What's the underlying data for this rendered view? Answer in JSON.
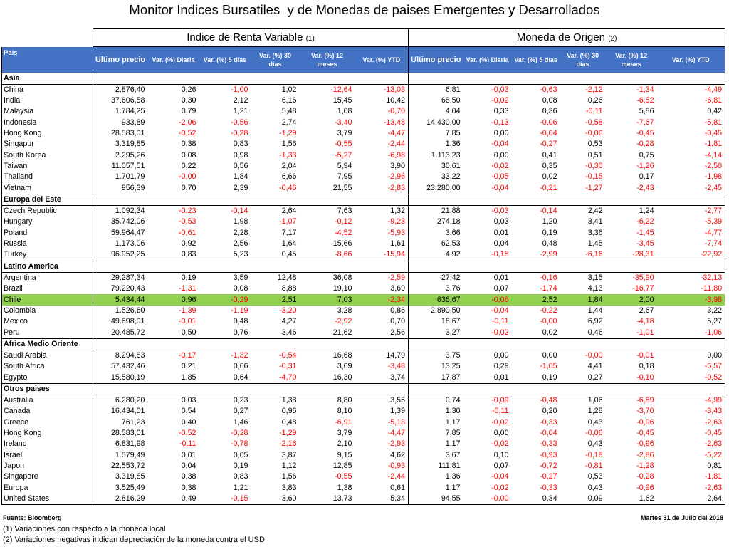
{
  "title": "Monitor Indices Bursatiles  y de Monedas de paises Emergentes y Desarrollados",
  "groups": {
    "equity": "Indice de Renta Variable",
    "equity_note": "(1)",
    "currency": "Moneda de Origen",
    "currency_note": "(2)"
  },
  "columns": [
    "Pais",
    "Ultimo precio",
    "Var. (%) Diaria",
    "Var. (%) 5 días",
    "Var. (%) 30 días",
    "Var. (%) 12 meses",
    "Var. (%) YTD",
    "Ultimo precio",
    "Var. (%) Diaria",
    "Var. (%) 5 días",
    "Var. (%) 30 días",
    "Var. (%) 12 meses",
    "Var. (%) YTD"
  ],
  "sections": [
    {
      "name": "Asia",
      "rows": [
        {
          "pais": "China",
          "v": [
            "2.876,40",
            "0,26",
            "-1,00",
            "1,02",
            "-12,64",
            "-13,03",
            "6,81",
            "-0,03",
            "-0,63",
            "-2,12",
            "-1,34",
            "-4,49"
          ]
        },
        {
          "pais": "India",
          "v": [
            "37.606,58",
            "0,30",
            "2,12",
            "6,16",
            "15,45",
            "10,42",
            "68,50",
            "-0,02",
            "0,08",
            "0,26",
            "-6,52",
            "-6,81"
          ]
        },
        {
          "pais": "Malaysia",
          "v": [
            "1.784,25",
            "0,79",
            "1,21",
            "5,48",
            "1,08",
            "-0,70",
            "4,04",
            "0,33",
            "0,36",
            "-0,11",
            "5,86",
            "0,42"
          ]
        },
        {
          "pais": "Indonesia",
          "v": [
            "933,89",
            "-2,06",
            "-0,56",
            "2,74",
            "-3,40",
            "-13,48",
            "14.430,00",
            "-0,13",
            "-0,06",
            "-0,58",
            "-7,67",
            "-5,81"
          ]
        },
        {
          "pais": "Hong Kong",
          "v": [
            "28.583,01",
            "-0,52",
            "-0,28",
            "-1,29",
            "3,79",
            "-4,47",
            "7,85",
            "0,00",
            "-0,04",
            "-0,06",
            "-0,45",
            "-0,45"
          ]
        },
        {
          "pais": "Singapur",
          "v": [
            "3.319,85",
            "0,38",
            "0,83",
            "1,56",
            "-0,55",
            "-2,44",
            "1,36",
            "-0,04",
            "-0,27",
            "0,53",
            "-0,28",
            "-1,81"
          ]
        },
        {
          "pais": "South Korea",
          "v": [
            "2.295,26",
            "0,08",
            "0,98",
            "-1,33",
            "-5,27",
            "-6,98",
            "1.113,23",
            "0,00",
            "0,41",
            "0,51",
            "0,75",
            "-4,14"
          ]
        },
        {
          "pais": "Taiwan",
          "v": [
            "11.057,51",
            "0,22",
            "0,56",
            "2,04",
            "5,94",
            "3,90",
            "30,61",
            "-0,02",
            "0,35",
            "-0,30",
            "-1,26",
            "-2,50"
          ]
        },
        {
          "pais": "Thailand",
          "v": [
            "1.701,79",
            "-0,00",
            "1,84",
            "6,66",
            "7,95",
            "-2,96",
            "33,22",
            "-0,05",
            "0,02",
            "-0,15",
            "0,17",
            "-1,98"
          ]
        },
        {
          "pais": "Vietnam",
          "v": [
            "956,39",
            "0,70",
            "2,39",
            "-0,46",
            "21,55",
            "-2,83",
            "23.280,00",
            "-0,04",
            "-0,21",
            "-1,27",
            "-2,43",
            "-2,45"
          ]
        }
      ]
    },
    {
      "name": "Europa del Este",
      "rows": [
        {
          "pais": "Czech Republic",
          "v": [
            "1.092,34",
            "-0,23",
            "-0,14",
            "2,64",
            "7,63",
            "1,32",
            "21,88",
            "-0,03",
            "-0,14",
            "2,42",
            "1,24",
            "-2,77"
          ]
        },
        {
          "pais": "Hungary",
          "v": [
            "35.742,06",
            "-0,53",
            "1,98",
            "-1,07",
            "-0,12",
            "-9,23",
            "274,18",
            "0,03",
            "1,20",
            "3,41",
            "-6,22",
            "-5,39"
          ]
        },
        {
          "pais": "Poland",
          "v": [
            "59.964,47",
            "-0,61",
            "2,28",
            "7,17",
            "-4,52",
            "-5,93",
            "3,66",
            "0,01",
            "0,19",
            "3,36",
            "-1,45",
            "-4,77"
          ]
        },
        {
          "pais": "Russia",
          "v": [
            "1.173,06",
            "0,92",
            "2,56",
            "1,64",
            "15,66",
            "1,61",
            "62,53",
            "0,04",
            "0,48",
            "1,45",
            "-3,45",
            "-7,74"
          ]
        },
        {
          "pais": "Turkey",
          "v": [
            "96.952,25",
            "0,83",
            "5,23",
            "0,45",
            "-8,66",
            "-15,94",
            "4,92",
            "-0,15",
            "-2,99",
            "-6,16",
            "-28,31",
            "-22,92"
          ]
        }
      ]
    },
    {
      "name": "Latino America",
      "rows": [
        {
          "pais": "Argentina",
          "v": [
            "29.287,34",
            "0,19",
            "3,59",
            "12,48",
            "36,08",
            "-2,59",
            "27,42",
            "0,01",
            "-0,16",
            "3,15",
            "-35,90",
            "-32,13"
          ]
        },
        {
          "pais": "Brazil",
          "v": [
            "79.220,43",
            "-1,31",
            "0,08",
            "8,88",
            "19,10",
            "3,69",
            "3,76",
            "0,07",
            "-1,74",
            "4,13",
            "-16,77",
            "-11,80"
          ]
        },
        {
          "pais": "Chile",
          "highlight": true,
          "v": [
            "5.434,44",
            "0,96",
            "-0,29",
            "2,51",
            "7,03",
            "-2,34",
            "636,67",
            "-0,06",
            "2,52",
            "1,84",
            "2,00",
            "-3,98"
          ]
        },
        {
          "pais": "Colombia",
          "v": [
            "1.526,60",
            "-1,39",
            "-1,19",
            "-3,20",
            "3,28",
            "0,86",
            "2.890,50",
            "-0,04",
            "-0,22",
            "1,44",
            "2,67",
            "3,22"
          ]
        },
        {
          "pais": "Mexico",
          "v": [
            "49.698,01",
            "-0,01",
            "0,48",
            "4,27",
            "-2,92",
            "0,70",
            "18,67",
            "-0,11",
            "-0,00",
            "6,92",
            "-4,18",
            "5,27"
          ]
        },
        {
          "pais": "Peru",
          "v": [
            "20.485,72",
            "0,50",
            "0,76",
            "3,46",
            "21,62",
            "2,56",
            "3,27",
            "-0,02",
            "0,02",
            "0,46",
            "-1,01",
            "-1,06"
          ]
        }
      ]
    },
    {
      "name": "Africa Medio Oriente",
      "rows": [
        {
          "pais": "Saudi Arabia",
          "v": [
            "8.294,83",
            "-0,17",
            "-1,32",
            "-0,54",
            "16,68",
            "14,79",
            "3,75",
            "0,00",
            "0,00",
            "-0,00",
            "-0,01",
            "0,00"
          ]
        },
        {
          "pais": "South Africa",
          "v": [
            "57.432,46",
            "0,21",
            "0,66",
            "-0,31",
            "3,69",
            "-3,48",
            "13,25",
            "0,29",
            "-1,05",
            "4,41",
            "0,18",
            "-6,57"
          ]
        },
        {
          "pais": "Egypto",
          "v": [
            "15.580,19",
            "1,85",
            "0,64",
            "-4,70",
            "16,30",
            "3,74",
            "17,87",
            "0,01",
            "0,19",
            "0,27",
            "-0,10",
            "-0,52"
          ]
        }
      ]
    },
    {
      "name": "Otros paises",
      "rows": [
        {
          "pais": "Australia",
          "v": [
            "6.280,20",
            "0,03",
            "0,23",
            "1,38",
            "8,80",
            "3,55",
            "0,74",
            "-0,09",
            "-0,48",
            "1,06",
            "-6,89",
            "-4,99"
          ]
        },
        {
          "pais": "Canada",
          "v": [
            "16.434,01",
            "0,54",
            "0,27",
            "0,96",
            "8,10",
            "1,39",
            "1,30",
            "-0,11",
            "0,20",
            "1,28",
            "-3,70",
            "-3,43"
          ]
        },
        {
          "pais": "Greece",
          "v": [
            "761,23",
            "0,40",
            "1,46",
            "0,48",
            "-6,91",
            "-5,13",
            "1,17",
            "-0,02",
            "-0,33",
            "0,43",
            "-0,96",
            "-2,63"
          ]
        },
        {
          "pais": "Hong Kong",
          "v": [
            "28.583,01",
            "-0,52",
            "-0,28",
            "-1,29",
            "3,79",
            "-4,47",
            "7,85",
            "0,00",
            "-0,04",
            "-0,06",
            "-0,45",
            "-0,45"
          ]
        },
        {
          "pais": "Ireland",
          "v": [
            "6.831,98",
            "-0,11",
            "-0,78",
            "-2,16",
            "2,10",
            "-2,93",
            "1,17",
            "-0,02",
            "-0,33",
            "0,43",
            "-0,96",
            "-2,63"
          ]
        },
        {
          "pais": "Israel",
          "v": [
            "1.579,49",
            "0,01",
            "0,65",
            "3,87",
            "9,15",
            "4,62",
            "3,67",
            "0,10",
            "-0,93",
            "-0,18",
            "-2,86",
            "-5,22"
          ]
        },
        {
          "pais": "Japon",
          "v": [
            "22.553,72",
            "0,04",
            "0,19",
            "1,12",
            "12,85",
            "-0,93",
            "111,81",
            "0,07",
            "-0,72",
            "-0,81",
            "-1,28",
            "0,81"
          ]
        },
        {
          "pais": "Singapore",
          "v": [
            "3.319,85",
            "0,38",
            "0,83",
            "1,56",
            "-0,55",
            "-2,44",
            "1,36",
            "-0,04",
            "-0,27",
            "0,53",
            "-0,28",
            "-1,81"
          ]
        },
        {
          "pais": "Europa",
          "v": [
            "3.525,49",
            "0,38",
            "1,21",
            "3,83",
            "1,38",
            "0,61",
            "1,17",
            "-0,02",
            "-0,33",
            "0,43",
            "-0,96",
            "-2,63"
          ]
        },
        {
          "pais": "United States",
          "v": [
            "2.816,29",
            "0,49",
            "-0,15",
            "3,60",
            "13,73",
            "5,34",
            "94,55",
            "-0,00",
            "0,34",
            "0,09",
            "1,62",
            "2,64"
          ]
        }
      ]
    }
  ],
  "footer": {
    "source": "Fuente: Bloomberg",
    "date": "Martes 31 de Julio del 2018",
    "note1": "(1) Variaciones con respecto a la moneda local",
    "note2": "(2) Variaciones negativas indican depreciación de la moneda contra el USD"
  },
  "colors": {
    "header_bg": "#4472c4",
    "highlight_bg": "#92d050",
    "negative": "#ff0000"
  }
}
